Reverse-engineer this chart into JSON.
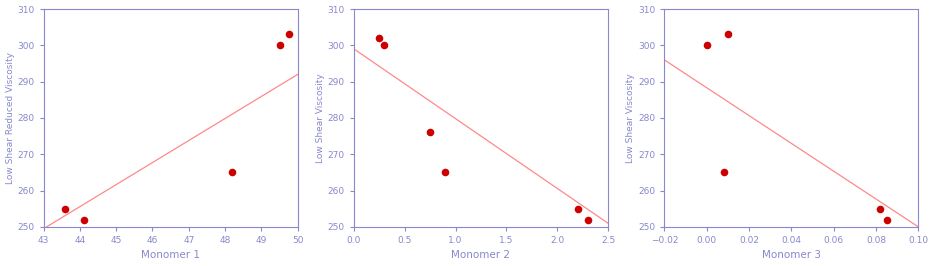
{
  "subplots": [
    {
      "xlabel": "Monomer 1",
      "ylabel": "Low Shear Reduced Viscosity",
      "scatter_x": [
        43.6,
        44.1,
        48.2,
        49.5,
        49.75
      ],
      "scatter_y": [
        255,
        252,
        265,
        300,
        303
      ],
      "line_x": [
        43.0,
        50.0
      ],
      "line_y": [
        249.5,
        292.0
      ],
      "xlim": [
        43,
        50
      ],
      "ylim": [
        250,
        310
      ],
      "xticks": [
        43,
        44,
        45,
        46,
        47,
        48,
        49,
        50
      ],
      "yticks": [
        250,
        260,
        270,
        280,
        290,
        300,
        310
      ]
    },
    {
      "xlabel": "Monomer 2",
      "ylabel": "Low Shear Viscosity",
      "scatter_x": [
        0.25,
        0.3,
        0.75,
        0.9,
        2.2,
        2.3
      ],
      "scatter_y": [
        302,
        300,
        276,
        265,
        255,
        252
      ],
      "line_x": [
        0.0,
        2.5
      ],
      "line_y": [
        299.0,
        251.0
      ],
      "xlim": [
        0,
        2.5
      ],
      "ylim": [
        250,
        310
      ],
      "xticks": [
        0,
        0.5,
        1.0,
        1.5,
        2.0,
        2.5
      ],
      "yticks": [
        250,
        260,
        270,
        280,
        290,
        300,
        310
      ]
    },
    {
      "xlabel": "Monomer 3",
      "ylabel": "Low Shear Viscosity",
      "scatter_x": [
        0.0,
        0.01,
        0.008,
        0.082,
        0.085
      ],
      "scatter_y": [
        300,
        303,
        265,
        255,
        252
      ],
      "line_x": [
        -0.02,
        0.1
      ],
      "line_y": [
        296.0,
        250.0
      ],
      "xlim": [
        -0.02,
        0.1
      ],
      "ylim": [
        250,
        310
      ],
      "xticks": [
        -0.02,
        0,
        0.02,
        0.04,
        0.06,
        0.08,
        0.1
      ],
      "yticks": [
        250,
        260,
        270,
        280,
        290,
        300,
        310
      ]
    }
  ],
  "scatter_color": "#cc0000",
  "line_color": "#ff8888",
  "spine_color": "#8888cc",
  "tick_color": "#8888cc",
  "label_color": "#8888cc",
  "scatter_size": 30,
  "bg_color": "#ffffff",
  "figsize": [
    9.34,
    2.66
  ],
  "dpi": 100
}
